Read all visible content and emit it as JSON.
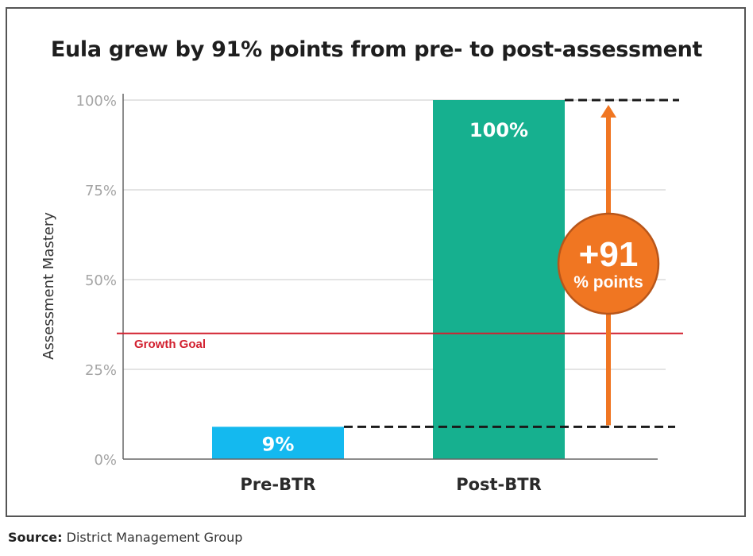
{
  "chart_data": {
    "type": "bar",
    "title": "Eula grew by 91% points from pre- to post-assessment",
    "xlabel": "",
    "ylabel": "Assessment Mastery",
    "ylim": [
      0,
      100
    ],
    "yticks": [
      0,
      25,
      50,
      75,
      100
    ],
    "ytick_labels": [
      "0%",
      "25%",
      "50%",
      "75%",
      "100%"
    ],
    "grid": true,
    "categories": [
      "Pre-BTR",
      "Post-BTR"
    ],
    "values": [
      9,
      100
    ],
    "data_labels": [
      "9%",
      "100%"
    ],
    "bar_colors": [
      "#14b9ef",
      "#16b08f"
    ],
    "reference_line": {
      "label": "Growth Goal",
      "value": 35,
      "color": "#d2202f"
    },
    "annotation": {
      "from": 9,
      "to": 100,
      "headline": "+91",
      "subline": "% points",
      "color": "#f07622"
    },
    "legend": "none"
  },
  "source": {
    "label": "Source:",
    "text": "District Management Group"
  }
}
